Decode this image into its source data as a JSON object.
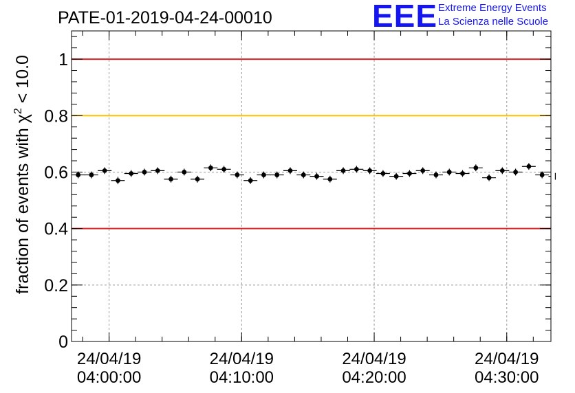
{
  "logo": {
    "mark": "EEE",
    "line1": "Extreme Energy Events",
    "line2": "La Scienza nelle Scuole",
    "color": "#1515ee"
  },
  "chart_data": {
    "type": "scatter",
    "title": "PATE-01-2019-04-24-00010",
    "xlabel": "",
    "ylabel": "fraction of events with χ² < 10.0",
    "ylabel_main": "fraction of events with χ",
    "ylabel_sup": "2",
    "ylabel_tail": " < 10.0",
    "ylim": [
      0,
      1.1
    ],
    "xlim": [
      "2019-04-24 03:57:10",
      "2019-04-24 04:33:20"
    ],
    "grid": true,
    "yticks": [
      {
        "value": 0,
        "label": "0"
      },
      {
        "value": 0.2,
        "label": "0.2"
      },
      {
        "value": 0.4,
        "label": "0.4"
      },
      {
        "value": 0.6,
        "label": "0.6"
      },
      {
        "value": 0.8,
        "label": "0.8"
      },
      {
        "value": 1,
        "label": "1"
      }
    ],
    "xticks": [
      {
        "time": "2019-04-24 04:00:00",
        "line1": "24/04/19",
        "line2": "04:00:00"
      },
      {
        "time": "2019-04-24 04:10:00",
        "line1": "24/04/19",
        "line2": "04:10:00"
      },
      {
        "time": "2019-04-24 04:20:00",
        "line1": "24/04/19",
        "line2": "04:20:00"
      },
      {
        "time": "2019-04-24 04:30:00",
        "line1": "24/04/19",
        "line2": "04:30:00"
      }
    ],
    "reference_lines": [
      {
        "y": 1.0,
        "color": "#e02020"
      },
      {
        "y": 0.8,
        "color": "#ffc000"
      },
      {
        "y": 0.4,
        "color": "#e02020"
      }
    ],
    "series": [
      {
        "color": "#000000",
        "x": [
          "2019-04-24 03:57:40",
          "2019-04-24 03:58:40",
          "2019-04-24 03:59:40",
          "2019-04-24 04:00:40",
          "2019-04-24 04:01:40",
          "2019-04-24 04:02:40",
          "2019-04-24 04:03:40",
          "2019-04-24 04:04:40",
          "2019-04-24 04:05:40",
          "2019-04-24 04:06:40",
          "2019-04-24 04:07:40",
          "2019-04-24 04:08:40",
          "2019-04-24 04:09:40",
          "2019-04-24 04:10:40",
          "2019-04-24 04:11:40",
          "2019-04-24 04:12:40",
          "2019-04-24 04:13:40",
          "2019-04-24 04:14:40",
          "2019-04-24 04:15:40",
          "2019-04-24 04:16:40",
          "2019-04-24 04:17:40",
          "2019-04-24 04:18:40",
          "2019-04-24 04:19:40",
          "2019-04-24 04:20:40",
          "2019-04-24 04:21:40",
          "2019-04-24 04:22:40",
          "2019-04-24 04:23:40",
          "2019-04-24 04:24:40",
          "2019-04-24 04:25:40",
          "2019-04-24 04:26:40",
          "2019-04-24 04:27:40",
          "2019-04-24 04:28:40",
          "2019-04-24 04:29:40",
          "2019-04-24 04:30:40",
          "2019-04-24 04:31:40",
          "2019-04-24 04:32:40",
          "2019-04-24 04:33:40"
        ],
        "y": [
          0.59,
          0.59,
          0.605,
          0.57,
          0.595,
          0.6,
          0.605,
          0.575,
          0.6,
          0.575,
          0.615,
          0.61,
          0.59,
          0.57,
          0.59,
          0.59,
          0.605,
          0.59,
          0.585,
          0.575,
          0.605,
          0.61,
          0.605,
          0.595,
          0.585,
          0.595,
          0.605,
          0.59,
          0.6,
          0.595,
          0.615,
          0.58,
          0.605,
          0.6,
          0.62,
          0.59,
          0.585
        ],
        "err": [
          0.012,
          0.012,
          0.012,
          0.013,
          0.012,
          0.012,
          0.012,
          0.012,
          0.012,
          0.012,
          0.012,
          0.012,
          0.012,
          0.012,
          0.012,
          0.012,
          0.012,
          0.012,
          0.012,
          0.012,
          0.012,
          0.012,
          0.012,
          0.012,
          0.012,
          0.012,
          0.012,
          0.012,
          0.012,
          0.012,
          0.012,
          0.012,
          0.012,
          0.012,
          0.012,
          0.012,
          0.012
        ]
      }
    ]
  }
}
